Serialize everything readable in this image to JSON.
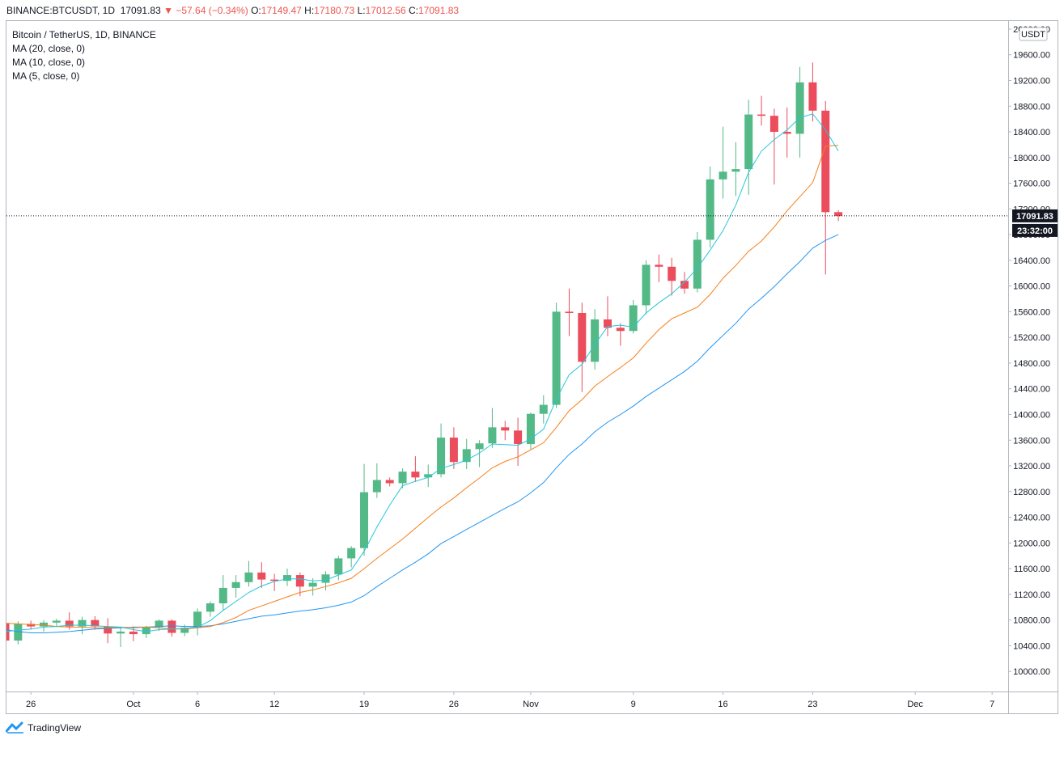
{
  "header": {
    "symbol": "BINANCE:BTCUSDT, 1D",
    "last": "17091.83",
    "arrow": "▼",
    "change": "−57.64 (−0.34%)",
    "o_label": "O:",
    "o_val": "17149.47",
    "h_label": "H:",
    "h_val": "17180.73",
    "l_label": "L:",
    "l_val": "17012.56",
    "c_label": "C:",
    "c_val": "17091.83"
  },
  "legend": {
    "title": "Bitcoin / TetherUS, 1D, BINANCE",
    "ma20": "MA (20, close, 0)",
    "ma10": "MA (10, close, 0)",
    "ma5": "MA (5, close, 0)"
  },
  "footer": {
    "brand": "TradingView"
  },
  "colors": {
    "up": "#53b987",
    "down": "#eb4d5c",
    "ma20": "#2196f3",
    "ma10": "#f57f17",
    "ma5": "#26c6da",
    "frame": "#b2b5be",
    "label_bg": "#131722"
  },
  "chart_data": {
    "type": "candlestick",
    "currency_label": "USDT",
    "price_label": "17091.83",
    "countdown_label": "23:32:00",
    "ylim": [
      9700,
      20100
    ],
    "y_ticks": [
      10000,
      10400,
      10800,
      11200,
      11600,
      12000,
      12400,
      12800,
      13200,
      13600,
      14000,
      14400,
      14800,
      15200,
      15600,
      16000,
      16400,
      16800,
      17200,
      17600,
      18000,
      18400,
      18800,
      19200,
      19600,
      20000
    ],
    "y_tick_labels": [
      "10000.00",
      "10400.00",
      "10800.00",
      "11200.00",
      "11600.00",
      "12000.00",
      "12400.00",
      "12800.00",
      "13200.00",
      "13600.00",
      "14000.00",
      "14400.00",
      "14800.00",
      "15200.00",
      "15600.00",
      "16000.00",
      "16400.00",
      "16800.00",
      "17200.00",
      "17600.00",
      "18000.00",
      "18400.00",
      "18800.00",
      "19200.00",
      "19600.00",
      "20000.00"
    ],
    "x_ticks": [
      {
        "index": 2,
        "label": "26"
      },
      {
        "index": 10,
        "label": "Oct"
      },
      {
        "index": 15,
        "label": "6"
      },
      {
        "index": 21,
        "label": "12"
      },
      {
        "index": 28,
        "label": "19"
      },
      {
        "index": 35,
        "label": "26"
      },
      {
        "index": 41,
        "label": "Nov"
      },
      {
        "index": 49,
        "label": "9"
      },
      {
        "index": 56,
        "label": "16"
      },
      {
        "index": 63,
        "label": "23"
      },
      {
        "index": 71,
        "label": "Dec"
      },
      {
        "index": 77,
        "label": "7"
      }
    ],
    "candles": [
      [
        10750,
        10760,
        10450,
        10480
      ],
      [
        10480,
        10780,
        10420,
        10740
      ],
      [
        10740,
        10790,
        10650,
        10700
      ],
      [
        10700,
        10800,
        10620,
        10760
      ],
      [
        10760,
        10820,
        10700,
        10790
      ],
      [
        10790,
        10920,
        10650,
        10700
      ],
      [
        10700,
        10850,
        10580,
        10800
      ],
      [
        10800,
        10860,
        10650,
        10700
      ],
      [
        10700,
        10830,
        10440,
        10590
      ],
      [
        10590,
        10690,
        10380,
        10620
      ],
      [
        10620,
        10700,
        10470,
        10580
      ],
      [
        10580,
        10710,
        10520,
        10690
      ],
      [
        10690,
        10810,
        10630,
        10790
      ],
      [
        10790,
        10810,
        10540,
        10600
      ],
      [
        10600,
        10730,
        10550,
        10680
      ],
      [
        10680,
        10980,
        10560,
        10930
      ],
      [
        10930,
        11090,
        10850,
        11060
      ],
      [
        11060,
        11500,
        10950,
        11300
      ],
      [
        11300,
        11500,
        11150,
        11390
      ],
      [
        11390,
        11720,
        11320,
        11540
      ],
      [
        11540,
        11700,
        11300,
        11430
      ],
      [
        11430,
        11520,
        11250,
        11410
      ],
      [
        11410,
        11600,
        11330,
        11500
      ],
      [
        11500,
        11540,
        11170,
        11320
      ],
      [
        11320,
        11450,
        11180,
        11380
      ],
      [
        11380,
        11560,
        11260,
        11510
      ],
      [
        11510,
        11800,
        11420,
        11760
      ],
      [
        11760,
        11950,
        11620,
        11920
      ],
      [
        11920,
        13230,
        11800,
        12790
      ],
      [
        12790,
        13240,
        12700,
        12980
      ],
      [
        12980,
        13020,
        12880,
        12930
      ],
      [
        12930,
        13160,
        12850,
        13110
      ],
      [
        13110,
        13350,
        12950,
        13020
      ],
      [
        13020,
        13220,
        12870,
        13070
      ],
      [
        13070,
        13860,
        13020,
        13640
      ],
      [
        13640,
        13800,
        13150,
        13260
      ],
      [
        13260,
        13620,
        13150,
        13460
      ],
      [
        13460,
        13600,
        13180,
        13550
      ],
      [
        13550,
        14100,
        13480,
        13800
      ],
      [
        13800,
        13900,
        13600,
        13750
      ],
      [
        13750,
        13950,
        13200,
        13540
      ],
      [
        13540,
        14030,
        13460,
        14010
      ],
      [
        14010,
        14300,
        13860,
        14150
      ],
      [
        14150,
        15740,
        14100,
        15600
      ],
      [
        15600,
        15960,
        15220,
        15580
      ],
      [
        15580,
        15740,
        14350,
        14820
      ],
      [
        14820,
        15640,
        14700,
        15480
      ],
      [
        15480,
        15840,
        15220,
        15350
      ],
      [
        15350,
        15420,
        15070,
        15300
      ],
      [
        15300,
        15780,
        15260,
        15700
      ],
      [
        15700,
        16400,
        15560,
        16330
      ],
      [
        16330,
        16490,
        16060,
        16300
      ],
      [
        16300,
        16440,
        15850,
        16080
      ],
      [
        16080,
        16220,
        15880,
        15960
      ],
      [
        15960,
        16840,
        15900,
        16720
      ],
      [
        16720,
        17860,
        16600,
        17660
      ],
      [
        17660,
        18480,
        17360,
        17780
      ],
      [
        17780,
        18240,
        17400,
        17820
      ],
      [
        17820,
        18900,
        17420,
        18670
      ],
      [
        18670,
        18960,
        18500,
        18650
      ],
      [
        18650,
        18760,
        17580,
        18400
      ],
      [
        18400,
        18780,
        18000,
        18370
      ],
      [
        18370,
        19410,
        18000,
        19170
      ],
      [
        19170,
        19480,
        18560,
        18730
      ],
      [
        18730,
        18880,
        16180,
        17150
      ],
      [
        17150,
        17180,
        17010,
        17090
      ]
    ],
    "ma20": [
      10650,
      10620,
      10600,
      10600,
      10610,
      10620,
      10640,
      10660,
      10670,
      10680,
      10690,
      10690,
      10700,
      10710,
      10700,
      10700,
      10710,
      10740,
      10780,
      10820,
      10860,
      10880,
      10910,
      10940,
      10960,
      10990,
      11030,
      11080,
      11180,
      11320,
      11450,
      11580,
      11700,
      11830,
      11990,
      12100,
      12210,
      12320,
      12430,
      12540,
      12640,
      12780,
      12940,
      13170,
      13380,
      13540,
      13730,
      13880,
      14000,
      14130,
      14280,
      14410,
      14540,
      14670,
      14830,
      15040,
      15230,
      15420,
      15640,
      15810,
      15990,
      16190,
      16380,
      16590,
      16710,
      16800
    ],
    "ma10": [
      10750,
      10740,
      10730,
      10720,
      10700,
      10690,
      10690,
      10680,
      10680,
      10690,
      10680,
      10690,
      10680,
      10660,
      10660,
      10680,
      10700,
      10760,
      10840,
      10950,
      11020,
      11090,
      11160,
      11230,
      11270,
      11320,
      11380,
      11450,
      11600,
      11760,
      11910,
      12060,
      12230,
      12400,
      12560,
      12700,
      12860,
      13010,
      13170,
      13270,
      13340,
      13450,
      13560,
      13800,
      14060,
      14230,
      14440,
      14590,
      14730,
      14880,
      15110,
      15320,
      15490,
      15580,
      15670,
      15870,
      16120,
      16320,
      16540,
      16700,
      16920,
      17170,
      17390,
      17610,
      18180,
      18190
    ],
    "ma5": [
      10620,
      10640,
      10660,
      10690,
      10700,
      10720,
      10720,
      10710,
      10700,
      10690,
      10650,
      10620,
      10650,
      10660,
      10670,
      10690,
      10790,
      10950,
      11090,
      11230,
      11330,
      11400,
      11440,
      11440,
      11410,
      11420,
      11500,
      11580,
      11870,
      12250,
      12590,
      12890,
      12960,
      13020,
      13160,
      13220,
      13290,
      13400,
      13540,
      13530,
      13520,
      13620,
      13770,
      14240,
      14620,
      14780,
      15090,
      15370,
      15390,
      15360,
      15580,
      15740,
      15880,
      16060,
      16280,
      16560,
      16860,
      17260,
      17770,
      18100,
      18280,
      18430,
      18620,
      18680,
      18430,
      18100
    ]
  }
}
